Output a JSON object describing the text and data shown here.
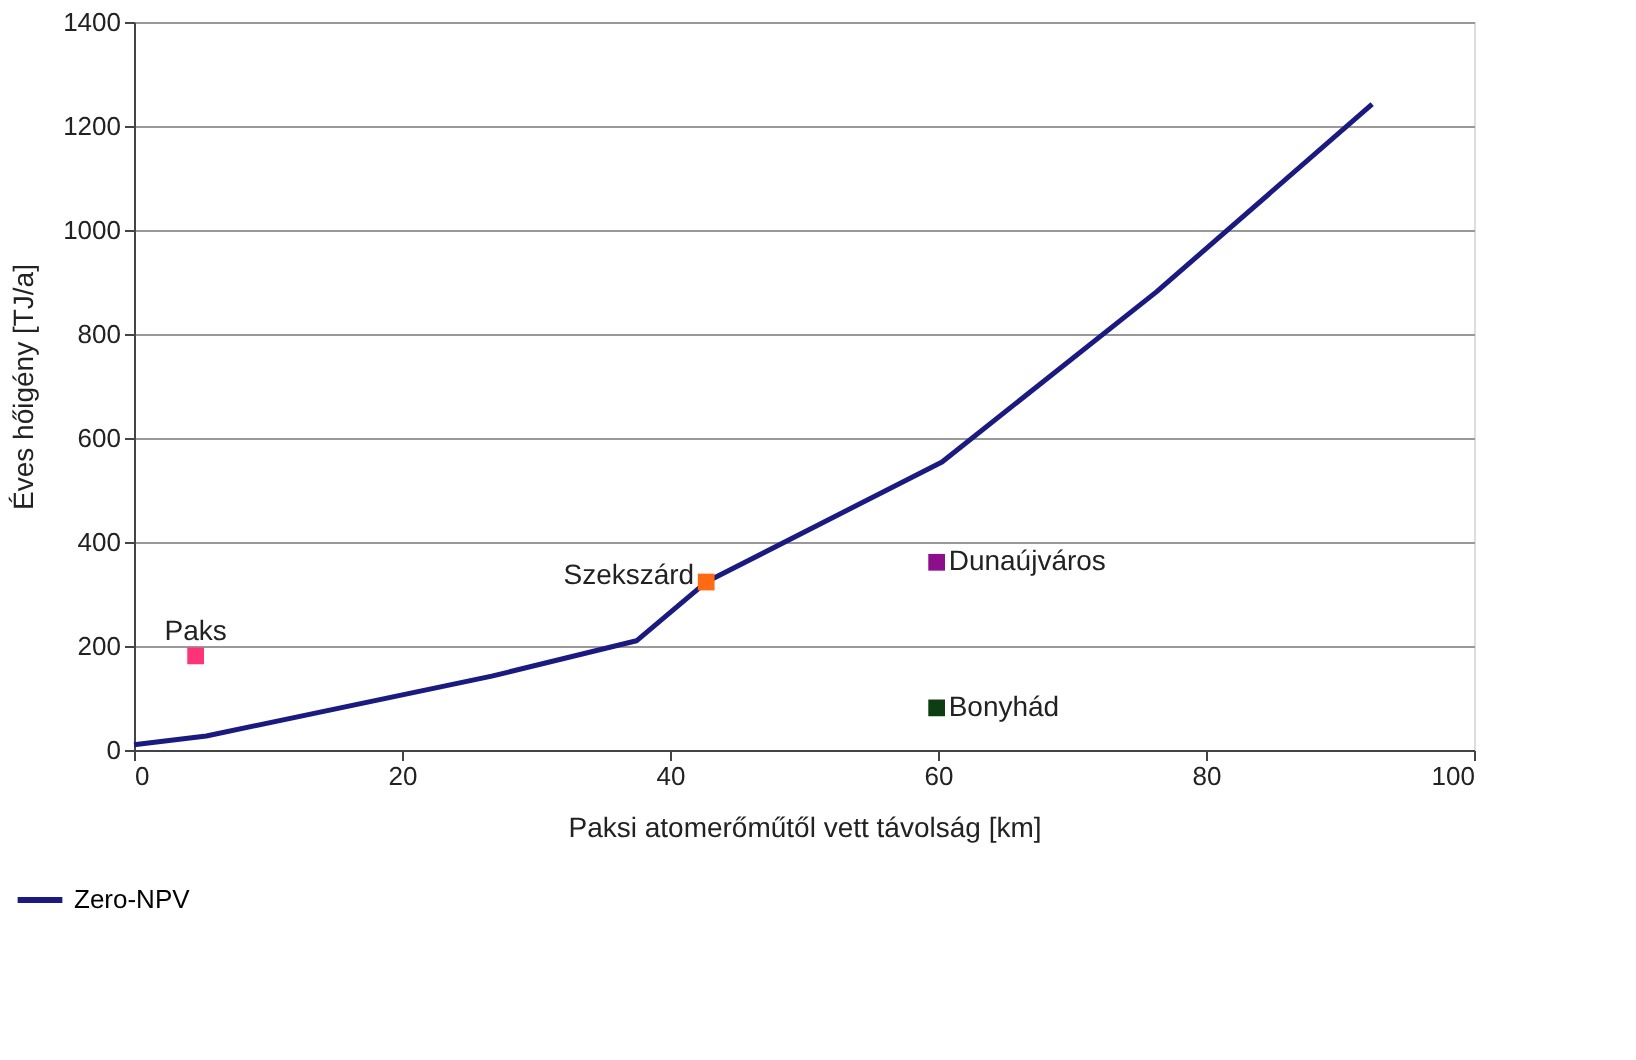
{
  "chart_data": {
    "type": "line",
    "xlabel": "Paksi atomerőműtől vett távolság [km]",
    "ylabel": "Éves hőigény [TJ/a]",
    "xlim": [
      0,
      100
    ],
    "xticks": [
      0,
      20,
      40,
      60,
      80,
      100
    ],
    "ylim": [
      0,
      1400
    ],
    "yticks": [
      0,
      200,
      400,
      600,
      800,
      1000,
      1200,
      1400
    ],
    "grid": "y",
    "legend": "bottom left",
    "series": [
      {
        "name": "Zero-NPV",
        "color": "#1a1a80",
        "marker": "none",
        "x": [
          0,
          5.4,
          26.7,
          37.5,
          42.7,
          60.3,
          76.3,
          92.4
        ],
        "values": [
          10,
          27,
          142,
          210,
          323,
          554,
          881,
          1242
        ]
      },
      {
        "type": "scatter",
        "marker": "square",
        "colors": [
          "#ff3377",
          "#ff6a13",
          "#8b0f8b",
          "#0d3d12"
        ],
        "x": [
          4.6,
          42.7,
          59.9,
          59.9
        ],
        "values": [
          181,
          323,
          361,
          81
        ]
      }
    ],
    "annotations": [
      {
        "text": "Paks",
        "x": 4.6,
        "y": 181
      },
      {
        "text": "Szekszárd",
        "x": 42.7,
        "y": 323
      },
      {
        "text": "Dunaújváros",
        "x": 59.9,
        "y": 361
      },
      {
        "text": "Bonyhád",
        "x": 59.9,
        "y": 81
      }
    ]
  }
}
